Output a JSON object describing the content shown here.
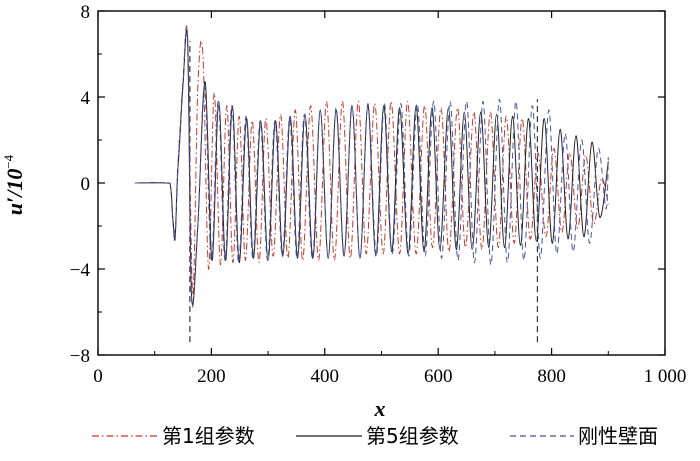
{
  "chart_data": {
    "type": "line",
    "title": "",
    "xlabel": "x",
    "ylabel_main": "u′/10",
    "ylabel_exp": "−4",
    "xlim": [
      0,
      1000
    ],
    "ylim": [
      -8,
      8
    ],
    "xticks": [
      0,
      200,
      400,
      600,
      800,
      1000
    ],
    "xtick_labels": [
      "0",
      "200",
      "400",
      "600",
      "800",
      "1 000"
    ],
    "yticks": [
      -8,
      -4,
      0,
      4,
      8
    ],
    "ytick_labels": [
      "−8",
      "−4",
      "0",
      "4",
      "8"
    ],
    "grid": false,
    "legend_position": "bottom",
    "vertical_markers": [
      {
        "x": 162,
        "y_range": [
          -7.4,
          6.6
        ]
      },
      {
        "x": 775,
        "y_range": [
          -7.4,
          3.9
        ]
      }
    ],
    "series": [
      {
        "name": "第1组参数",
        "color": "#c0392b",
        "dash": "dash-dot",
        "x": [
          65,
          120,
          128,
          132,
          136,
          140,
          144,
          150,
          158,
          167,
          176,
          185,
          195,
          205,
          216,
          227,
          238,
          249,
          260,
          272,
          284,
          296,
          309,
          322,
          335,
          348,
          361,
          375,
          389,
          403,
          417,
          431,
          445,
          459,
          473,
          488,
          503,
          517,
          532,
          546,
          561,
          576,
          590,
          605,
          619,
          634,
          648,
          663,
          677,
          692,
          706,
          720,
          734,
          748,
          762,
          776,
          790,
          804,
          818,
          832,
          846,
          860,
          874,
          888,
          900
        ],
        "y": [
          0,
          0,
          -0.2,
          -1.6,
          -2.3,
          0.4,
          2.2,
          4.8,
          6.8,
          -5.2,
          4.4,
          6.0,
          -4.0,
          4.2,
          -3.8,
          3.6,
          -3.7,
          3.1,
          -3.6,
          2.9,
          -3.7,
          3.0,
          -3.4,
          3.2,
          -3.5,
          3.4,
          -3.6,
          3.6,
          -3.6,
          3.8,
          -3.6,
          3.8,
          -3.5,
          3.8,
          -3.3,
          3.7,
          -3.3,
          3.8,
          -3.3,
          3.8,
          -3.3,
          3.6,
          -3.0,
          3.5,
          -3.2,
          3.5,
          -3.0,
          3.3,
          -3.1,
          3.3,
          -3.0,
          3.1,
          -2.8,
          3.0,
          -2.6,
          1.4,
          -2.5,
          1.6,
          -2.3,
          1.4,
          -2.1,
          1.3,
          -1.9,
          0.2,
          -1.0
        ]
      },
      {
        "name": "第5组参数",
        "color": "#222222",
        "dash": "solid",
        "x": [
          65,
          120,
          128,
          132,
          136,
          140,
          144,
          150,
          158,
          165,
          176,
          189,
          201,
          213,
          225,
          237,
          249,
          262,
          274,
          287,
          300,
          313,
          326,
          339,
          352,
          365,
          379,
          392,
          406,
          420,
          434,
          448,
          462,
          476,
          490,
          504,
          518,
          532,
          547,
          561,
          575,
          589,
          603,
          618,
          632,
          646,
          660,
          675,
          689,
          703,
          717,
          731,
          745,
          759,
          773,
          787,
          801,
          815,
          829,
          843,
          857,
          871,
          885,
          900
        ],
        "y": [
          0,
          0,
          -0.2,
          -1.7,
          -2.6,
          0.2,
          1.9,
          4.6,
          6.6,
          -5.3,
          -2.0,
          4.7,
          -3.6,
          3.8,
          -3.6,
          3.6,
          -3.7,
          3.0,
          -3.5,
          2.9,
          -3.6,
          2.9,
          -3.4,
          3.1,
          -3.5,
          3.2,
          -3.5,
          3.4,
          -3.5,
          3.4,
          -3.4,
          3.6,
          -3.5,
          3.6,
          -3.4,
          3.6,
          -3.2,
          3.5,
          -3.3,
          3.6,
          -3.2,
          3.5,
          -3.1,
          3.5,
          -3.1,
          3.3,
          -3.1,
          3.3,
          -3.0,
          3.2,
          -3.0,
          3.1,
          -2.9,
          3.0,
          -2.7,
          3.0,
          -2.8,
          2.5,
          -2.6,
          2.2,
          -2.5,
          1.9,
          -1.6,
          1.0
        ]
      },
      {
        "name": "刚性壁面",
        "color": "#4a52a8",
        "dash": "dash",
        "x": [
          65,
          120,
          128,
          132,
          136,
          140,
          144,
          150,
          158,
          165,
          176,
          188,
          200,
          212,
          224,
          236,
          248,
          261,
          273,
          286,
          299,
          312,
          325,
          338,
          351,
          364,
          378,
          392,
          406,
          420,
          434,
          448,
          462,
          476,
          491,
          505,
          519,
          534,
          548,
          563,
          577,
          592,
          606,
          621,
          635,
          650,
          664,
          679,
          693,
          708,
          722,
          737,
          751,
          766,
          780,
          795,
          809,
          824,
          838,
          853,
          867,
          882,
          896,
          900
        ],
        "y": [
          0,
          0,
          -0.2,
          -1.6,
          -2.5,
          0.2,
          1.8,
          4.7,
          6.7,
          -5.4,
          -2.0,
          4.5,
          -3.6,
          3.8,
          -3.6,
          3.6,
          -3.7,
          3.1,
          -3.5,
          2.9,
          -3.6,
          2.9,
          -3.4,
          3.0,
          -3.5,
          3.2,
          -3.5,
          3.4,
          -3.5,
          3.5,
          -3.4,
          3.6,
          -3.5,
          3.7,
          -3.4,
          3.7,
          -3.3,
          3.7,
          -3.4,
          3.7,
          -3.4,
          3.8,
          -3.5,
          3.8,
          -3.6,
          3.8,
          -3.7,
          3.8,
          -3.8,
          3.9,
          -3.7,
          3.8,
          -3.6,
          3.6,
          -3.5,
          3.4,
          -3.3,
          2.3,
          -3.2,
          2.0,
          -2.8,
          1.6,
          -1.2,
          1.2
        ]
      }
    ]
  }
}
